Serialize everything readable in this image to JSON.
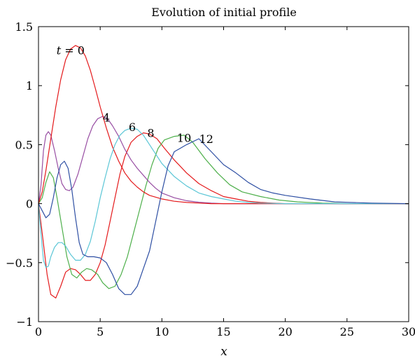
{
  "chart_data": {
    "type": "line",
    "title": "Evolution of initial profile",
    "xlabel": "x",
    "ylabel": "",
    "xlim": [
      0,
      30
    ],
    "ylim": [
      -1,
      1.5
    ],
    "xticks": [
      0,
      5,
      10,
      15,
      20,
      25,
      30
    ],
    "xtick_labels": [
      "0",
      "5",
      "10",
      "15",
      "20",
      "25",
      "30"
    ],
    "yticks": [
      -1,
      -0.5,
      0,
      0.5,
      1,
      1.5
    ],
    "ytick_labels": [
      "−1",
      "−0.5",
      "0",
      "0.5",
      "1",
      "1.5"
    ],
    "grid": false,
    "series": [
      {
        "color": "#e41a1c",
        "points": [
          [
            0,
            0
          ],
          [
            0.3,
            -0.25
          ],
          [
            0.7,
            -0.6
          ],
          [
            1.0,
            -0.77
          ],
          [
            1.4,
            -0.8
          ],
          [
            1.8,
            -0.7
          ],
          [
            2.2,
            -0.58
          ],
          [
            2.6,
            -0.55
          ],
          [
            3.0,
            -0.56
          ],
          [
            3.4,
            -0.6
          ],
          [
            3.8,
            -0.65
          ],
          [
            4.2,
            -0.65
          ],
          [
            4.6,
            -0.6
          ],
          [
            5.0,
            -0.5
          ],
          [
            5.4,
            -0.35
          ],
          [
            5.8,
            -0.15
          ],
          [
            6.2,
            0.05
          ],
          [
            6.6,
            0.25
          ],
          [
            7.0,
            0.4
          ],
          [
            7.5,
            0.52
          ],
          [
            8.0,
            0.57
          ],
          [
            8.5,
            0.6
          ],
          [
            9.0,
            0.59
          ],
          [
            9.6,
            0.55
          ],
          [
            10.2,
            0.47
          ],
          [
            11.0,
            0.37
          ],
          [
            12.0,
            0.26
          ],
          [
            13.0,
            0.17
          ],
          [
            14.0,
            0.11
          ],
          [
            15.0,
            0.06
          ],
          [
            16.0,
            0.04
          ],
          [
            17.0,
            0.02
          ],
          [
            18.0,
            0.01
          ],
          [
            19.0,
            0.005
          ],
          [
            20,
            0
          ],
          [
            25,
            0
          ],
          [
            30,
            0
          ]
        ]
      },
      {
        "color": "#4daf4a",
        "points": [
          [
            0,
            0
          ],
          [
            0.3,
            0.05
          ],
          [
            0.6,
            0.18
          ],
          [
            0.9,
            0.27
          ],
          [
            1.2,
            0.22
          ],
          [
            1.5,
            0.05
          ],
          [
            1.9,
            -0.2
          ],
          [
            2.3,
            -0.45
          ],
          [
            2.7,
            -0.6
          ],
          [
            3.1,
            -0.63
          ],
          [
            3.5,
            -0.58
          ],
          [
            3.9,
            -0.55
          ],
          [
            4.3,
            -0.56
          ],
          [
            4.8,
            -0.6
          ],
          [
            5.2,
            -0.67
          ],
          [
            5.7,
            -0.72
          ],
          [
            6.2,
            -0.7
          ],
          [
            6.7,
            -0.6
          ],
          [
            7.2,
            -0.45
          ],
          [
            7.7,
            -0.25
          ],
          [
            8.2,
            -0.05
          ],
          [
            8.7,
            0.15
          ],
          [
            9.2,
            0.33
          ],
          [
            9.7,
            0.47
          ],
          [
            10.2,
            0.54
          ],
          [
            11.0,
            0.57
          ],
          [
            11.8,
            0.58
          ],
          [
            12.5,
            0.52
          ],
          [
            13.5,
            0.38
          ],
          [
            14.5,
            0.26
          ],
          [
            15.5,
            0.16
          ],
          [
            16.5,
            0.1
          ],
          [
            18.0,
            0.06
          ],
          [
            19.5,
            0.03
          ],
          [
            21.0,
            0.015
          ],
          [
            23.0,
            0.005
          ],
          [
            25,
            0
          ],
          [
            30,
            0
          ]
        ]
      },
      {
        "color": "#984ea3",
        "points": [
          [
            0,
            0
          ],
          [
            0.2,
            0.15
          ],
          [
            0.4,
            0.45
          ],
          [
            0.6,
            0.58
          ],
          [
            0.8,
            0.61
          ],
          [
            1.0,
            0.58
          ],
          [
            1.3,
            0.45
          ],
          [
            1.6,
            0.3
          ],
          [
            1.9,
            0.17
          ],
          [
            2.2,
            0.12
          ],
          [
            2.5,
            0.11
          ],
          [
            2.8,
            0.14
          ],
          [
            3.2,
            0.25
          ],
          [
            3.6,
            0.4
          ],
          [
            4.0,
            0.55
          ],
          [
            4.4,
            0.66
          ],
          [
            4.8,
            0.72
          ],
          [
            5.2,
            0.74
          ],
          [
            5.6,
            0.72
          ],
          [
            6.0,
            0.66
          ],
          [
            6.5,
            0.57
          ],
          [
            7.0,
            0.46
          ],
          [
            7.5,
            0.37
          ],
          [
            8.0,
            0.3
          ],
          [
            8.5,
            0.24
          ],
          [
            9.0,
            0.18
          ],
          [
            9.5,
            0.13
          ],
          [
            10.0,
            0.09
          ],
          [
            11.0,
            0.05
          ],
          [
            12.0,
            0.025
          ],
          [
            13.0,
            0.012
          ],
          [
            14.0,
            0.005
          ],
          [
            15,
            0
          ],
          [
            20,
            0
          ],
          [
            25,
            0
          ],
          [
            30,
            0
          ]
        ]
      },
      {
        "color": "#e41a1c",
        "points": [
          [
            0,
            0
          ],
          [
            0.3,
            0.1
          ],
          [
            0.6,
            0.28
          ],
          [
            1.0,
            0.55
          ],
          [
            1.4,
            0.82
          ],
          [
            1.8,
            1.05
          ],
          [
            2.2,
            1.22
          ],
          [
            2.6,
            1.31
          ],
          [
            3.0,
            1.34
          ],
          [
            3.4,
            1.32
          ],
          [
            3.8,
            1.25
          ],
          [
            4.2,
            1.13
          ],
          [
            4.6,
            0.98
          ],
          [
            5.0,
            0.82
          ],
          [
            5.5,
            0.64
          ],
          [
            6.0,
            0.48
          ],
          [
            6.5,
            0.36
          ],
          [
            7.0,
            0.26
          ],
          [
            7.5,
            0.19
          ],
          [
            8.0,
            0.14
          ],
          [
            8.5,
            0.1
          ],
          [
            9.0,
            0.07
          ],
          [
            10.0,
            0.04
          ],
          [
            11.0,
            0.02
          ],
          [
            12.0,
            0.01
          ],
          [
            13.0,
            0.005
          ],
          [
            14,
            0
          ],
          [
            20,
            0
          ],
          [
            30,
            0
          ]
        ]
      },
      {
        "color": "#5bc6d6",
        "points": [
          [
            0,
            0
          ],
          [
            0.2,
            -0.25
          ],
          [
            0.4,
            -0.48
          ],
          [
            0.6,
            -0.54
          ],
          [
            0.8,
            -0.53
          ],
          [
            1.0,
            -0.45
          ],
          [
            1.3,
            -0.37
          ],
          [
            1.6,
            -0.33
          ],
          [
            1.9,
            -0.33
          ],
          [
            2.2,
            -0.36
          ],
          [
            2.6,
            -0.43
          ],
          [
            3.0,
            -0.48
          ],
          [
            3.4,
            -0.48
          ],
          [
            3.8,
            -0.43
          ],
          [
            4.2,
            -0.32
          ],
          [
            4.6,
            -0.15
          ],
          [
            5.0,
            0.05
          ],
          [
            5.4,
            0.22
          ],
          [
            5.8,
            0.38
          ],
          [
            6.2,
            0.5
          ],
          [
            6.6,
            0.58
          ],
          [
            7.0,
            0.62
          ],
          [
            7.5,
            0.64
          ],
          [
            8.0,
            0.63
          ],
          [
            8.5,
            0.58
          ],
          [
            9.0,
            0.5
          ],
          [
            9.5,
            0.42
          ],
          [
            10.0,
            0.34
          ],
          [
            11.0,
            0.23
          ],
          [
            12.0,
            0.15
          ],
          [
            13.0,
            0.09
          ],
          [
            14.0,
            0.06
          ],
          [
            15.0,
            0.04
          ],
          [
            16.0,
            0.02
          ],
          [
            17.0,
            0.01
          ],
          [
            18,
            0.005
          ],
          [
            20,
            0
          ],
          [
            25,
            0
          ],
          [
            30,
            0
          ]
        ]
      },
      {
        "color": "#2e4fa3",
        "points": [
          [
            0,
            0
          ],
          [
            0.3,
            -0.06
          ],
          [
            0.6,
            -0.12
          ],
          [
            0.9,
            -0.09
          ],
          [
            1.2,
            0.05
          ],
          [
            1.5,
            0.22
          ],
          [
            1.8,
            0.33
          ],
          [
            2.1,
            0.36
          ],
          [
            2.4,
            0.3
          ],
          [
            2.7,
            0.12
          ],
          [
            3.0,
            -0.12
          ],
          [
            3.3,
            -0.33
          ],
          [
            3.6,
            -0.43
          ],
          [
            4.0,
            -0.45
          ],
          [
            4.5,
            -0.45
          ],
          [
            5.0,
            -0.46
          ],
          [
            5.5,
            -0.5
          ],
          [
            6.0,
            -0.6
          ],
          [
            6.5,
            -0.72
          ],
          [
            7.0,
            -0.77
          ],
          [
            7.5,
            -0.77
          ],
          [
            8.0,
            -0.7
          ],
          [
            8.5,
            -0.55
          ],
          [
            9.0,
            -0.4
          ],
          [
            9.5,
            -0.15
          ],
          [
            10.0,
            0.1
          ],
          [
            10.5,
            0.32
          ],
          [
            11.0,
            0.44
          ],
          [
            12.0,
            0.5
          ],
          [
            13.0,
            0.55
          ],
          [
            14.0,
            0.44
          ],
          [
            15.0,
            0.33
          ],
          [
            16.0,
            0.26
          ],
          [
            17.0,
            0.18
          ],
          [
            18.0,
            0.12
          ],
          [
            19.0,
            0.09
          ],
          [
            20.0,
            0.07
          ],
          [
            22.0,
            0.04
          ],
          [
            24.0,
            0.015
          ],
          [
            27.0,
            0.005
          ],
          [
            30,
            0
          ]
        ]
      }
    ],
    "annotations": [
      {
        "label": "t = 0",
        "x": 2.6,
        "y": 1.3
      },
      {
        "label": "4",
        "x": 5.5,
        "y": 0.73
      },
      {
        "label": "6",
        "x": 7.6,
        "y": 0.65
      },
      {
        "label": "8",
        "x": 9.1,
        "y": 0.6
      },
      {
        "label": "10",
        "x": 11.8,
        "y": 0.56
      },
      {
        "label": "12",
        "x": 13.6,
        "y": 0.55
      }
    ]
  }
}
